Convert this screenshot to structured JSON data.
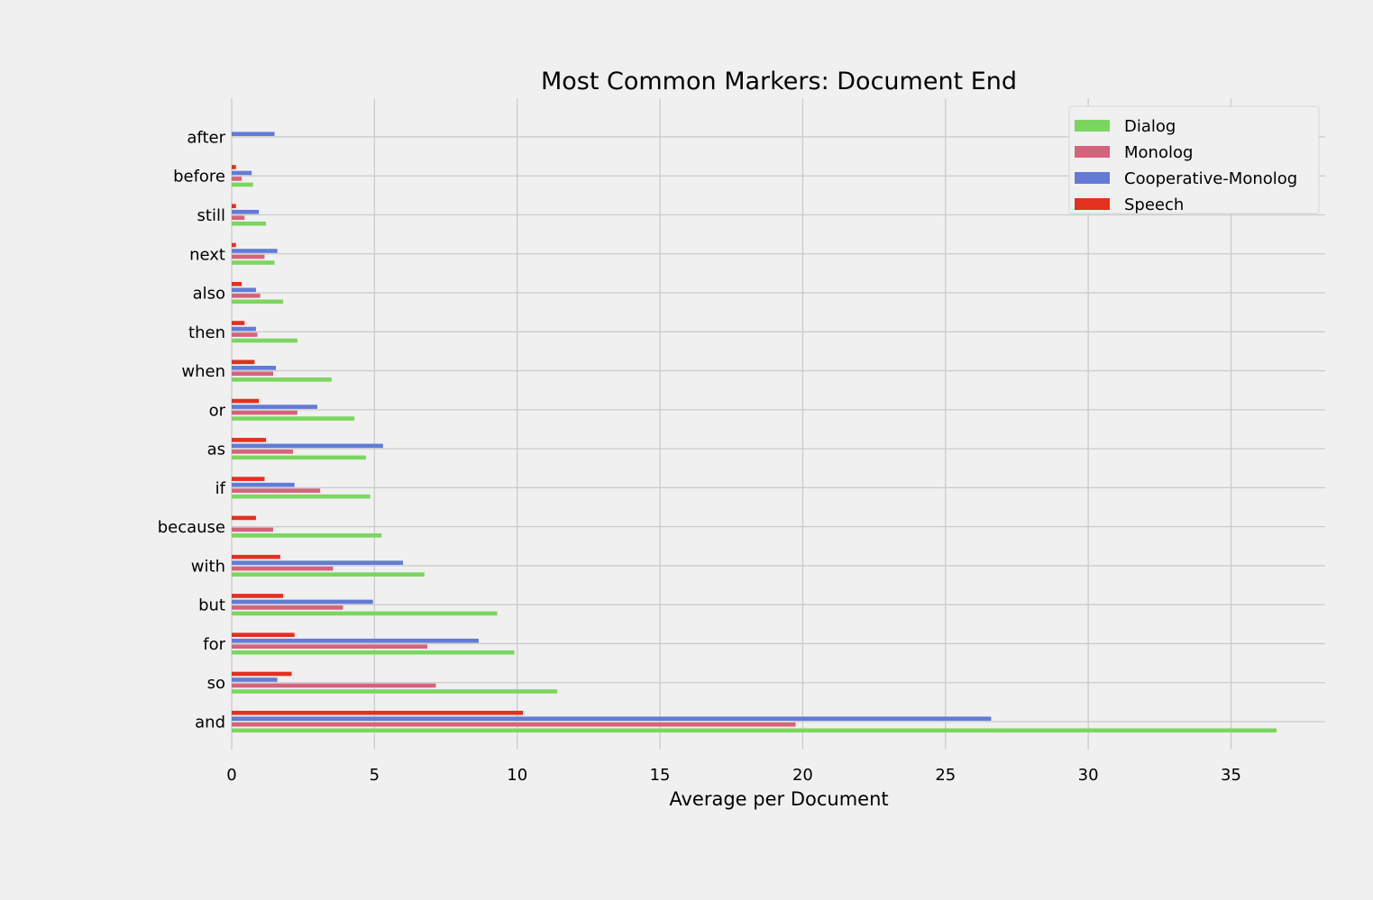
{
  "chart_data": {
    "type": "bar",
    "orientation": "horizontal",
    "title": "Most Common Markers: Document End",
    "xlabel": "Average per Document",
    "ylabel": "",
    "xlim": [
      0,
      38.3
    ],
    "xticks": [
      0,
      5,
      10,
      15,
      20,
      25,
      30,
      35
    ],
    "grid": true,
    "legend_position": "top-right",
    "categories": [
      "and",
      "so",
      "for",
      "but",
      "with",
      "because",
      "if",
      "as",
      "or",
      "when",
      "then",
      "also",
      "next",
      "still",
      "before",
      "after"
    ],
    "series": [
      {
        "name": "Dialog",
        "color": "#7bd65f",
        "values": [
          36.6,
          11.4,
          9.9,
          9.3,
          6.75,
          5.25,
          4.85,
          4.7,
          4.3,
          3.5,
          2.3,
          1.8,
          1.5,
          1.2,
          0.75,
          0
        ]
      },
      {
        "name": "Monolog",
        "color": "#d6627b",
        "values": [
          19.75,
          7.15,
          6.85,
          3.9,
          3.55,
          1.45,
          3.1,
          2.15,
          2.3,
          1.45,
          0.9,
          1.0,
          1.15,
          0.45,
          0.35,
          0
        ]
      },
      {
        "name": "Cooperative-Monolog",
        "color": "#627bd6",
        "values": [
          26.6,
          1.6,
          8.65,
          4.95,
          6.0,
          0,
          2.2,
          5.3,
          3.0,
          1.55,
          0.85,
          0.85,
          1.6,
          0.95,
          0.7,
          1.5
        ]
      },
      {
        "name": "Speech",
        "color": "#e3301f",
        "values": [
          10.2,
          2.1,
          2.2,
          1.8,
          1.7,
          0.85,
          1.15,
          1.2,
          0.95,
          0.8,
          0.45,
          0.35,
          0.15,
          0.15,
          0.15,
          0
        ]
      }
    ]
  }
}
